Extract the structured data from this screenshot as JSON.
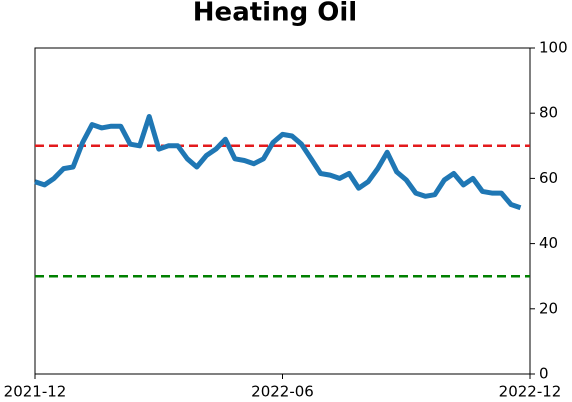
{
  "chart_data": {
    "type": "line",
    "title": "Heating Oil",
    "categories": [
      "2021-12",
      null,
      null,
      null,
      null,
      null,
      null,
      null,
      null,
      null,
      null,
      null,
      null,
      null,
      null,
      null,
      null,
      null,
      null,
      null,
      null,
      null,
      null,
      null,
      null,
      null,
      "2022-06",
      null,
      null,
      null,
      null,
      null,
      null,
      null,
      null,
      null,
      null,
      null,
      null,
      null,
      null,
      null,
      null,
      null,
      null,
      null,
      null,
      null,
      null,
      null,
      null,
      null,
      "2022-12"
    ],
    "series": [
      {
        "color": "#1f77b4",
        "values": [
          59,
          58,
          60,
          63,
          63.5,
          71,
          76.5,
          75.5,
          76,
          76,
          70.5,
          70,
          79,
          69,
          70,
          70,
          66,
          63.5,
          67,
          69,
          72,
          66,
          65.5,
          64.5,
          66,
          71,
          73.5,
          73,
          70.5,
          66,
          61.5,
          61,
          60,
          61.5,
          57,
          59,
          63,
          68,
          62,
          59.5,
          55.5,
          54.5,
          55,
          59.5,
          61.5,
          58,
          60,
          56,
          55.5,
          55.5,
          52,
          51,
          null
        ]
      }
    ],
    "hlines": [
      {
        "value": 70,
        "color": "#e31a1c"
      },
      {
        "value": 30,
        "color": "#008000"
      }
    ],
    "ylim": [
      0,
      100
    ],
    "yticks": [
      0,
      20,
      40,
      60,
      80,
      100
    ]
  }
}
